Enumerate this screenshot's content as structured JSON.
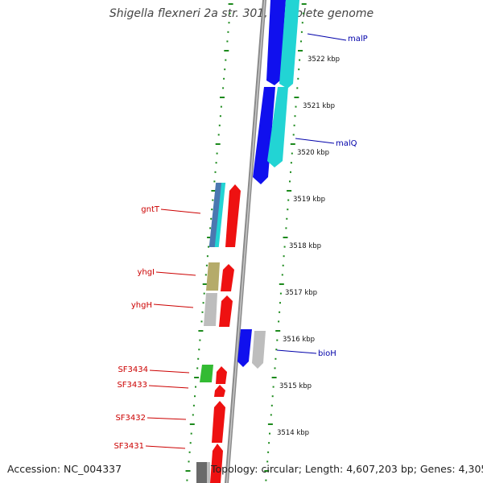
{
  "map": {
    "title": "Shigella flexneri 2a str. 301, complete genome",
    "accession": "Accession: NC_004337",
    "topology": "Topology: circular; Length: 4,607,203 bp; Genes: 4,305",
    "colors": {
      "backbone": "#8a8a8a",
      "ruler_dots": "#1c8a1c",
      "forward_label": "#0000aa",
      "reverse_label": "#cc0000",
      "blue": "#1010ee",
      "cyan": "#22d4d4",
      "red": "#ee1111",
      "steel": "#4a78b0",
      "olive": "#b5ab6a",
      "silver": "#bdbdbd",
      "green": "#33bb33",
      "gray": "#6a6a6a"
    },
    "kbp_labels": [
      "3522 kbp",
      "3521 kbp",
      "3520 kbp",
      "3519 kbp",
      "3518 kbp",
      "3517 kbp",
      "3516 kbp",
      "3515 kbp",
      "3514 kbp"
    ],
    "gene_labels": [
      {
        "text": "malP",
        "strand": "forward"
      },
      {
        "text": "malQ",
        "strand": "forward"
      },
      {
        "text": "bioH",
        "strand": "forward"
      },
      {
        "text": "gntT",
        "strand": "reverse"
      },
      {
        "text": "yhgI",
        "strand": "reverse"
      },
      {
        "text": "yhgH",
        "strand": "reverse"
      },
      {
        "text": "SF3434",
        "strand": "reverse"
      },
      {
        "text": "SF3433",
        "strand": "reverse"
      },
      {
        "text": "SF3432",
        "strand": "reverse"
      },
      {
        "text": "SF3431",
        "strand": "reverse"
      }
    ]
  }
}
